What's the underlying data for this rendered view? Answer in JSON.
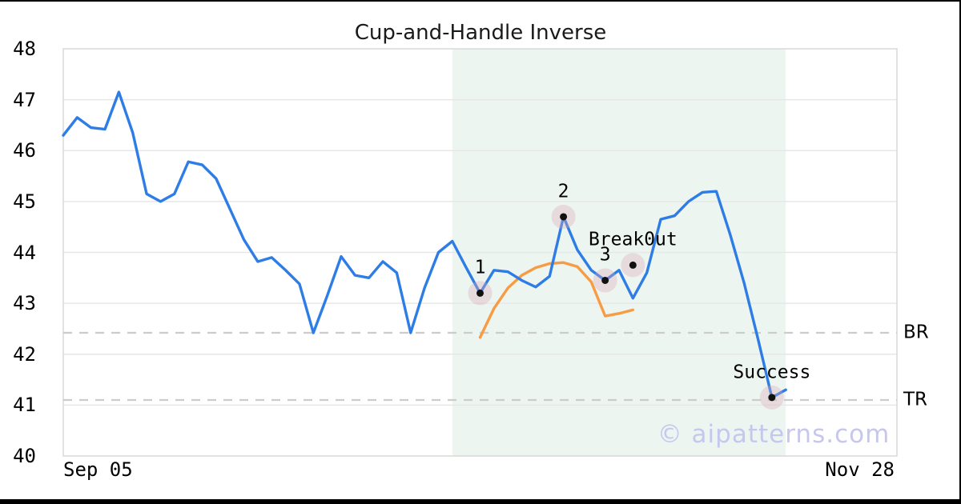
{
  "watermark": "© aipatterns.com",
  "chart_data": {
    "type": "line",
    "title": "Cup-and-Handle Inverse",
    "x_axis": {
      "tick_labels": [
        "Sep 05",
        "Nov 28"
      ],
      "range": [
        0,
        60
      ]
    },
    "y_axis": {
      "ticks": [
        48,
        47,
        46,
        45,
        44,
        43,
        42,
        41,
        40
      ],
      "range": [
        40,
        48
      ]
    },
    "grid": "horizontal",
    "legend": "none",
    "series": [
      {
        "name": "price",
        "color": "#2e7de6",
        "x_start": 0,
        "values": [
          46.3,
          46.65,
          46.45,
          46.42,
          47.15,
          46.35,
          45.15,
          45.0,
          45.15,
          45.78,
          45.72,
          45.45,
          44.85,
          44.25,
          43.82,
          43.9,
          43.65,
          43.38,
          42.42,
          43.15,
          43.92,
          43.55,
          43.5,
          43.82,
          43.6,
          42.42,
          43.3,
          44.0,
          44.22,
          43.7,
          43.2,
          43.65,
          43.62,
          43.45,
          43.32,
          43.53,
          44.7,
          44.05,
          43.65,
          43.45,
          43.65,
          43.1,
          43.6,
          44.65,
          44.72,
          45.0,
          45.18,
          45.2,
          44.35,
          43.4,
          42.3,
          41.15,
          41.3
        ]
      },
      {
        "name": "pattern-overlay",
        "color": "#f89b45",
        "x_start": 30,
        "values": [
          42.33,
          42.9,
          43.3,
          43.55,
          43.7,
          43.78,
          43.8,
          43.72,
          43.42,
          42.75,
          42.8,
          42.87
        ]
      }
    ],
    "levels": [
      {
        "label": "BR",
        "value": 42.42
      },
      {
        "label": "TR",
        "value": 41.1
      }
    ],
    "region": {
      "x_start": 28,
      "x_end": 52,
      "color": "#edf5f1"
    },
    "annotations": [
      {
        "label": "1",
        "x": 30,
        "y": 43.2
      },
      {
        "label": "2",
        "x": 36,
        "y": 44.7
      },
      {
        "label": "3",
        "x": 39,
        "y": 43.45
      },
      {
        "label": "Break0ut",
        "x": 41,
        "y": 43.75
      },
      {
        "label": "Success",
        "x": 51,
        "y": 41.15
      }
    ],
    "colors": {
      "marker_halo": "#d9a8b4",
      "marker_dot": "#111111",
      "gridline": "#e7e7e7",
      "plot_border": "#d9d9d9",
      "level_line": "#cccccc"
    }
  }
}
